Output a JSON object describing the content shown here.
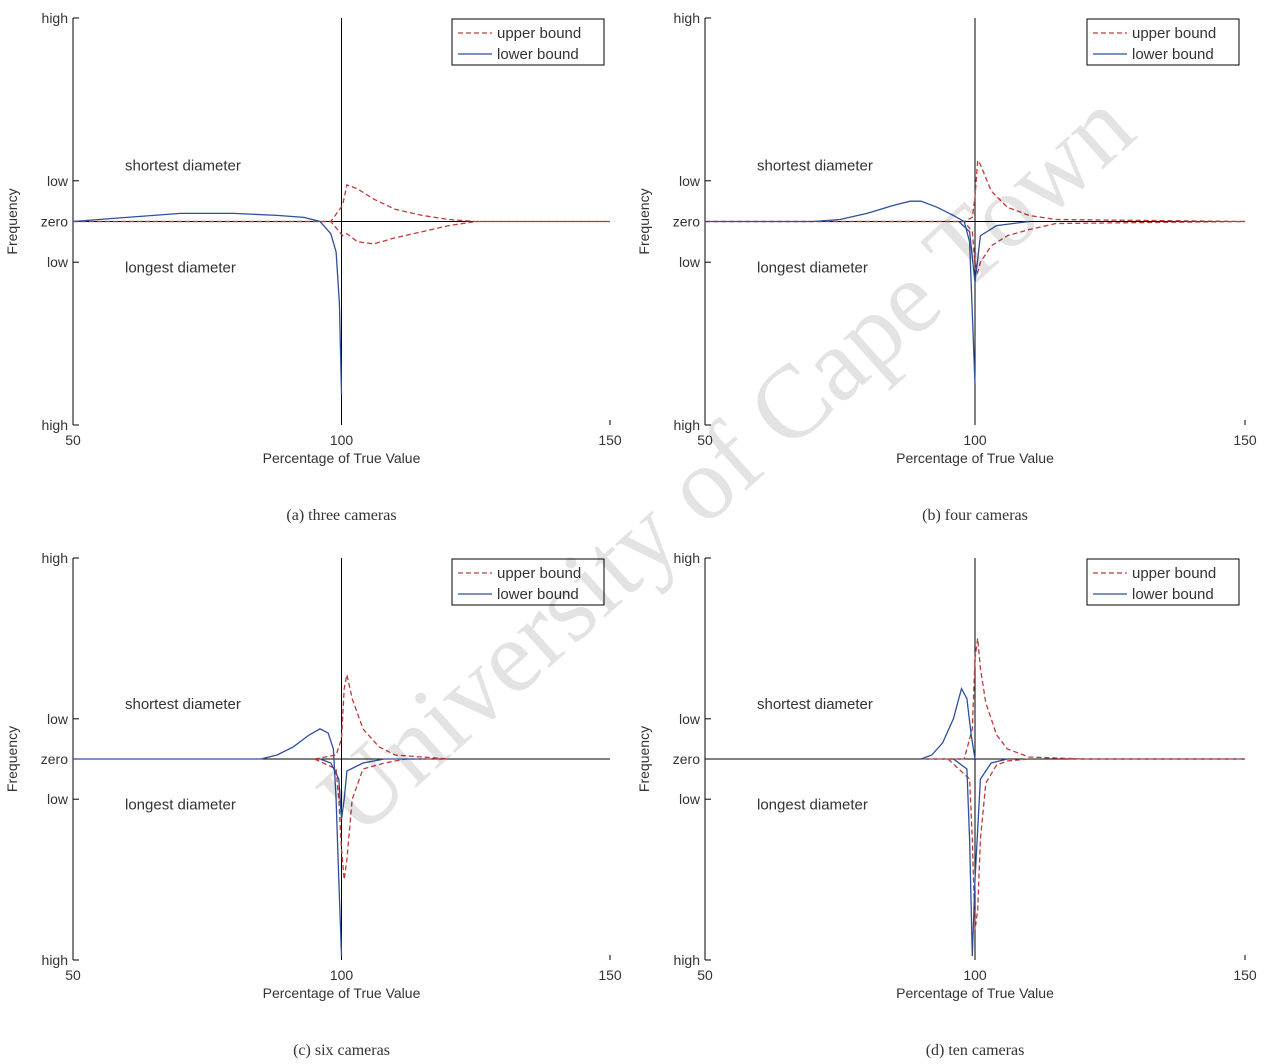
{
  "watermark": "University of Cape Town",
  "colors": {
    "upper": "#c0393b",
    "lower": "#2f4f9b",
    "axis": "#000000"
  },
  "chart_data": [
    {
      "type": "line",
      "caption": "(a)  three cameras",
      "xlabel": "Percentage of True Value",
      "ylabel": "Frequency",
      "xlim": [
        50,
        150
      ],
      "xticks": [
        50,
        100,
        150
      ],
      "ylim": [
        -1,
        1
      ],
      "yticks": [
        {
          "v": 1,
          "label": "high"
        },
        {
          "v": 0.2,
          "label": "low"
        },
        {
          "v": 0,
          "label": "zero"
        },
        {
          "v": -0.2,
          "label": "low"
        },
        {
          "v": -1,
          "label": "high"
        }
      ],
      "annotations": [
        "shortest diameter",
        "longest diameter"
      ],
      "legend": {
        "position": "top-right",
        "entries": [
          "upper bound",
          "lower bound"
        ]
      },
      "series": [
        {
          "name": "upper bound",
          "x": [
            50,
            98,
            100.2,
            101,
            103,
            106,
            110,
            115,
            120,
            125,
            150
          ],
          "y": [
            0,
            0,
            0.08,
            0.18,
            0.16,
            0.11,
            0.06,
            0.03,
            0.01,
            0,
            0
          ]
        },
        {
          "name": "upper bound",
          "x": [
            50,
            98,
            100.2,
            101,
            103,
            106,
            110,
            115,
            120,
            125,
            150
          ],
          "y": [
            0,
            0,
            -0.07,
            -0.06,
            -0.1,
            -0.11,
            -0.08,
            -0.05,
            -0.02,
            0,
            0
          ]
        },
        {
          "name": "lower bound",
          "x": [
            50,
            60,
            70,
            80,
            88,
            93,
            96,
            98,
            99,
            99.6,
            100
          ],
          "y": [
            0,
            0.02,
            0.04,
            0.04,
            0.03,
            0.02,
            0,
            -0.06,
            -0.15,
            -0.4,
            -0.85
          ]
        }
      ]
    },
    {
      "type": "line",
      "caption": "(b)  four cameras",
      "xlabel": "Percentage of True Value",
      "ylabel": "Frequency",
      "xlim": [
        50,
        150
      ],
      "xticks": [
        50,
        100,
        150
      ],
      "ylim": [
        -1,
        1
      ],
      "yticks": [
        {
          "v": 1,
          "label": "high"
        },
        {
          "v": 0.2,
          "label": "low"
        },
        {
          "v": 0,
          "label": "zero"
        },
        {
          "v": -0.2,
          "label": "low"
        },
        {
          "v": -1,
          "label": "high"
        }
      ],
      "annotations": [
        "shortest diameter",
        "longest diameter"
      ],
      "legend": {
        "position": "top-right",
        "entries": [
          "upper bound",
          "lower bound"
        ]
      },
      "series": [
        {
          "name": "upper bound",
          "x": [
            50,
            98,
            99.5,
            100,
            100.5,
            101,
            103,
            106,
            110,
            115,
            150
          ],
          "y": [
            0,
            0,
            0.02,
            0.12,
            0.3,
            0.28,
            0.15,
            0.07,
            0.03,
            0.01,
            0
          ]
        },
        {
          "name": "upper bound",
          "x": [
            50,
            98,
            99.5,
            100,
            100.5,
            101,
            103,
            106,
            110,
            115,
            150
          ],
          "y": [
            0,
            0,
            -0.05,
            -0.2,
            -0.25,
            -0.2,
            -0.12,
            -0.07,
            -0.04,
            -0.01,
            0
          ]
        },
        {
          "name": "lower bound",
          "x": [
            50,
            70,
            75,
            80,
            85,
            88,
            90,
            93,
            96,
            98,
            99,
            99.5,
            100
          ],
          "y": [
            0,
            0,
            0.01,
            0.04,
            0.08,
            0.1,
            0.1,
            0.07,
            0.03,
            0,
            -0.1,
            -0.45,
            -0.8
          ]
        },
        {
          "name": "lower bound",
          "x": [
            97,
            99,
            100,
            101,
            104,
            110
          ],
          "y": [
            0,
            -0.05,
            -0.3,
            -0.07,
            -0.02,
            0
          ]
        }
      ]
    },
    {
      "type": "line",
      "caption": "(c)  six cameras",
      "xlabel": "Percentage of True Value",
      "ylabel": "Frequency",
      "xlim": [
        50,
        150
      ],
      "xticks": [
        50,
        100,
        150
      ],
      "ylim": [
        -1,
        1
      ],
      "yticks": [
        {
          "v": 1,
          "label": "high"
        },
        {
          "v": 0.2,
          "label": "low"
        },
        {
          "v": 0,
          "label": "zero"
        },
        {
          "v": -0.2,
          "label": "low"
        },
        {
          "v": -1,
          "label": "high"
        }
      ],
      "annotations": [
        "shortest diameter",
        "longest diameter"
      ],
      "legend": {
        "position": "top-right",
        "entries": [
          "upper bound",
          "lower bound"
        ]
      },
      "series": [
        {
          "name": "upper bound",
          "x": [
            95,
            99,
            100,
            100.5,
            101,
            102,
            104,
            107,
            110,
            115,
            120
          ],
          "y": [
            0,
            0.02,
            0.1,
            0.35,
            0.42,
            0.3,
            0.15,
            0.06,
            0.02,
            0.01,
            0
          ]
        },
        {
          "name": "upper bound",
          "x": [
            95,
            99,
            99.5,
            100,
            100.5,
            101,
            102,
            104,
            108,
            112,
            120
          ],
          "y": [
            0,
            -0.05,
            -0.2,
            -0.45,
            -0.6,
            -0.5,
            -0.2,
            -0.05,
            -0.02,
            0,
            0
          ]
        },
        {
          "name": "lower bound",
          "x": [
            50,
            85,
            88,
            91,
            94,
            96,
            97.5,
            98.5,
            99,
            99.5,
            100
          ],
          "y": [
            0,
            0,
            0.02,
            0.06,
            0.12,
            0.15,
            0.13,
            0.05,
            -0.2,
            -0.6,
            -0.98
          ]
        },
        {
          "name": "lower bound",
          "x": [
            96,
            98,
            99.5,
            100,
            100.5,
            101,
            102.5,
            104,
            108,
            115
          ],
          "y": [
            0,
            -0.02,
            -0.1,
            -0.3,
            -0.2,
            -0.06,
            -0.04,
            -0.02,
            0,
            0
          ]
        }
      ]
    },
    {
      "type": "line",
      "caption": "(d)  ten cameras",
      "xlabel": "Percentage of True Value",
      "ylabel": "Frequency",
      "xlim": [
        50,
        150
      ],
      "xticks": [
        50,
        100,
        150
      ],
      "ylim": [
        -1,
        1
      ],
      "yticks": [
        {
          "v": 1,
          "label": "high"
        },
        {
          "v": 0.2,
          "label": "low"
        },
        {
          "v": 0,
          "label": "zero"
        },
        {
          "v": -0.2,
          "label": "low"
        },
        {
          "v": -1,
          "label": "high"
        }
      ],
      "annotations": [
        "shortest diameter",
        "longest diameter"
      ],
      "legend": {
        "position": "top-right",
        "entries": [
          "upper bound",
          "lower bound"
        ]
      },
      "series": [
        {
          "name": "upper bound",
          "x": [
            90,
            98,
            99.5,
            100,
            100.5,
            101,
            102,
            104,
            106,
            110,
            120,
            150
          ],
          "y": [
            0,
            0,
            0.15,
            0.5,
            0.6,
            0.45,
            0.28,
            0.12,
            0.05,
            0.01,
            0,
            0
          ]
        },
        {
          "name": "upper bound",
          "x": [
            95,
            99,
            99.5,
            100,
            100.5,
            101,
            102,
            104,
            106,
            110
          ],
          "y": [
            0,
            -0.1,
            -0.4,
            -0.85,
            -0.75,
            -0.4,
            -0.12,
            -0.03,
            -0.01,
            0
          ]
        },
        {
          "name": "lower bound",
          "x": [
            90,
            92,
            94,
            96,
            97.5,
            98.5,
            99.3,
            100
          ],
          "y": [
            0,
            0.02,
            0.08,
            0.2,
            0.35,
            0.3,
            0.12,
            0
          ]
        },
        {
          "name": "lower bound",
          "x": [
            96,
            98.5,
            99,
            99.5,
            100,
            101,
            103,
            106
          ],
          "y": [
            0,
            -0.05,
            -0.4,
            -0.98,
            -0.6,
            -0.1,
            -0.02,
            0
          ]
        }
      ]
    }
  ]
}
